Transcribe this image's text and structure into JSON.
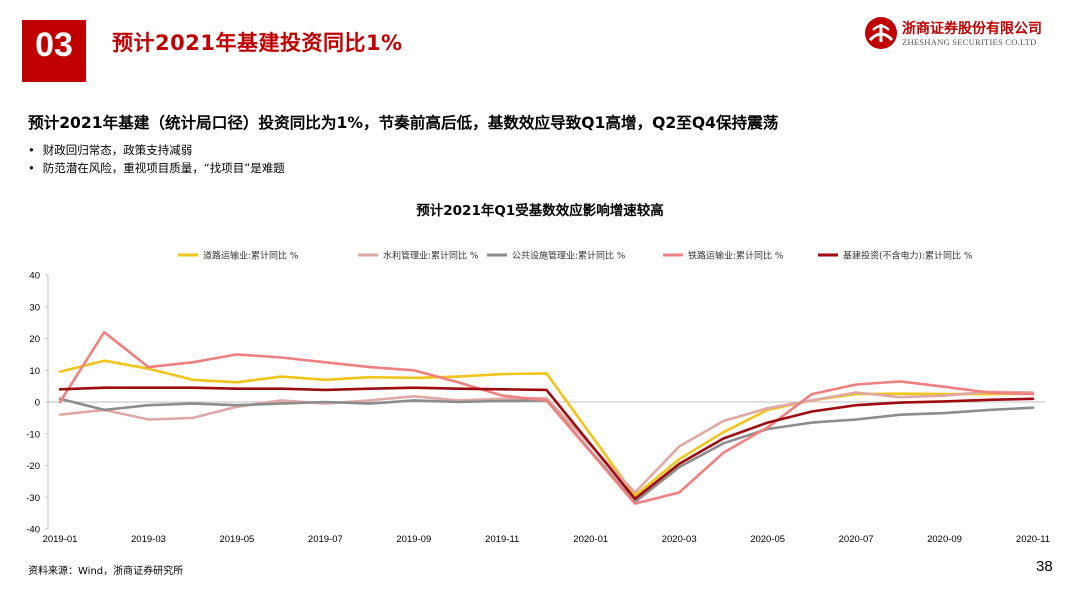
{
  "header": {
    "section_number": "03",
    "title": "预计2021年基建投资同比1%"
  },
  "logo": {
    "name_cn": "浙商证券股份有限公司",
    "name_en": "ZHESHANG SECURITIES CO.LTD"
  },
  "headline": "预计2021年基建（统计局口径）投资同比为1%，节奏前高后低，基数效应导致Q1高增，Q2至Q4保持震荡",
  "bullets": [
    "财政回归常态，政策支持减弱",
    "防范潜在风险，重视项目质量，“找项目”是难题"
  ],
  "chart_data": {
    "type": "line",
    "title": "预计2021年Q1受基数效应影响增速较高",
    "x": [
      "2019-01",
      "2019-02",
      "2019-03",
      "2019-04",
      "2019-05",
      "2019-06",
      "2019-07",
      "2019-08",
      "2019-09",
      "2019-10",
      "2019-11",
      "2019-12",
      "2020-01",
      "2020-02",
      "2020-03",
      "2020-04",
      "2020-05",
      "2020-06",
      "2020-07",
      "2020-08",
      "2020-09",
      "2020-10",
      "2020-11"
    ],
    "x_tick_labels": [
      "2019-01",
      "2019-03",
      "2019-05",
      "2019-07",
      "2019-09",
      "2019-11",
      "2020-01",
      "2020-03",
      "2020-05",
      "2020-07",
      "2020-09",
      "2020-11"
    ],
    "y_ticks": [
      40,
      30,
      20,
      10,
      0,
      -10,
      -20,
      -30,
      -40
    ],
    "ylim": [
      -40,
      40
    ],
    "grid": false,
    "legend_position": "top",
    "series": [
      {
        "name": "道路运输业:累计同比 %",
        "color": "#f0c419",
        "values": [
          9.5,
          13,
          10.5,
          7,
          6.2,
          8,
          7,
          7.8,
          7.6,
          8,
          8.8,
          9,
          null,
          -29.5,
          -18,
          -9.5,
          -2.5,
          0.5,
          2.5,
          2.6,
          2.5,
          2.5,
          2.6
        ]
      },
      {
        "name": "水利管理业:累计同比 %",
        "color": "#e0a8a4",
        "values": [
          -4,
          -2.5,
          -5.5,
          -5,
          -1.5,
          0.5,
          -0.5,
          0.5,
          1.8,
          0.5,
          1,
          1.2,
          null,
          -28.5,
          -14,
          -6,
          -2,
          0.5,
          3,
          1.5,
          2,
          3.2,
          3
        ]
      },
      {
        "name": "公共设施管理业:累计同比 %",
        "color": "#8c8c8c",
        "values": [
          1,
          -2.5,
          -1,
          -0.5,
          -1,
          -0.5,
          0,
          -0.5,
          0.5,
          0,
          0.3,
          0.5,
          null,
          -31.5,
          -20.5,
          -13,
          -8.5,
          -6.5,
          -5.5,
          -4,
          -3.5,
          -2.5,
          -1.8
        ]
      },
      {
        "name": "铁路运输业:累计同比 %",
        "color": "#f08080",
        "values": [
          0,
          22,
          11,
          12.5,
          15,
          14,
          12.5,
          11,
          10,
          6.2,
          2,
          0.5,
          null,
          -32,
          -28.5,
          -16,
          -8,
          2.5,
          5.5,
          6.5,
          4.8,
          3,
          2.5
        ]
      },
      {
        "name": "基建投资(不含电力):累计同比 %",
        "color": "#9e0b0f",
        "values": [
          4,
          4.5,
          4.5,
          4.5,
          4.2,
          4.2,
          3.8,
          4.2,
          4.5,
          4.2,
          4,
          3.8,
          null,
          -30.5,
          -19.5,
          -11.5,
          -6.5,
          -3,
          -1,
          -0.2,
          0.2,
          0.7,
          1
        ]
      }
    ]
  },
  "source": "资料来源：Wind，浙商证券研究所",
  "page_number": "38"
}
